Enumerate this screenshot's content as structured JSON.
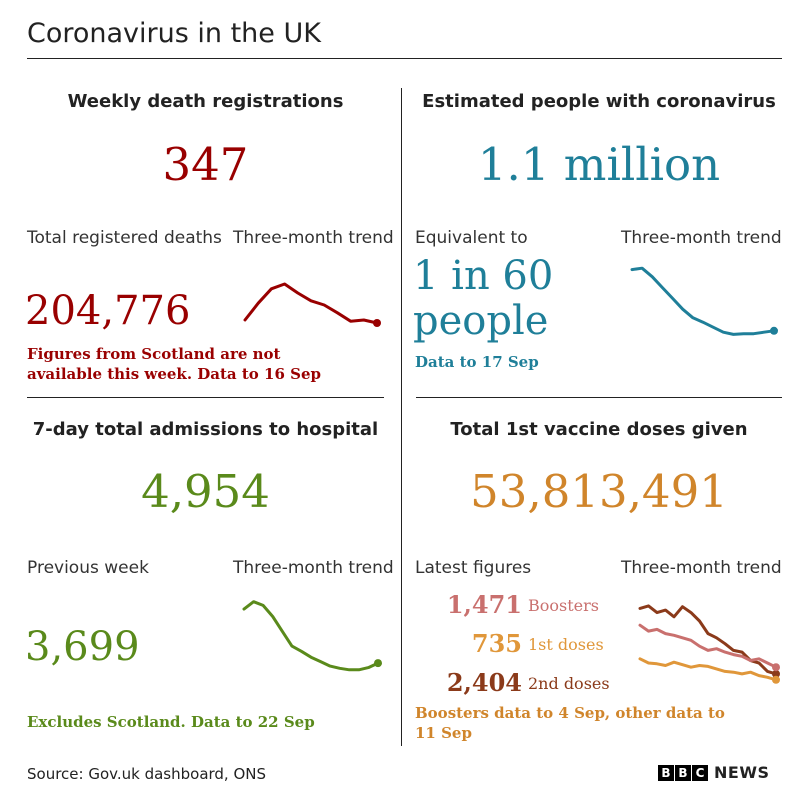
{
  "title": "Coronavirus in the UK",
  "colors": {
    "deaths": "#990000",
    "infections": "#1f7f99",
    "hospital": "#5a8a1b",
    "vaccine": "#d0852b",
    "boosters": "#c9706e",
    "first_doses": "#e0973a",
    "second_doses": "#8b3a1a"
  },
  "deaths": {
    "title": "Weekly death registrations",
    "value": "347",
    "total_label": "Total registered deaths",
    "total_value": "204,776",
    "note": "Figures from Scotland are not available this week. Data to 16 Sep",
    "trend_label": "Three-month trend"
  },
  "infections": {
    "title": "Estimated people with coronavirus",
    "value": "1.1 million",
    "equiv_label": "Equivalent to",
    "equiv_value_line1": "1 in 60",
    "equiv_value_line2": "people",
    "note": "Data to 17 Sep",
    "trend_label": "Three-month trend"
  },
  "hospital": {
    "title": "7-day total admissions to hospital",
    "value": "4,954",
    "prev_label": "Previous week",
    "prev_value": "3,699",
    "note": "Excludes Scotland. Data to 22 Sep",
    "trend_label": "Three-month trend"
  },
  "vaccine": {
    "title": "Total 1st vaccine doses given",
    "value": "53,813,491",
    "latest_label": "Latest figures",
    "boosters_value": "1,471",
    "boosters_label": "Boosters",
    "first_value": "735",
    "first_label": "1st doses",
    "second_value": "2,404",
    "second_label": "2nd doses",
    "note": "Boosters data to 4 Sep, other data to 11 Sep",
    "trend_label": "Three-month trend"
  },
  "footer": {
    "source": "Source: Gov.uk dashboard, ONS",
    "logo_letters": [
      "B",
      "B",
      "C"
    ],
    "logo_word": "NEWS"
  },
  "chart_data": [
    {
      "type": "line",
      "title": "Three-month trend",
      "series": [
        {
          "values": [
            10,
            38,
            62,
            70,
            55,
            42,
            35,
            22,
            8,
            10,
            5
          ]
        }
      ]
    },
    {
      "type": "line",
      "title": "Three-month trend",
      "series": [
        {
          "values": [
            95,
            97,
            85,
            70,
            55,
            40,
            28,
            22,
            15,
            8,
            5,
            6,
            6,
            8,
            10
          ]
        }
      ]
    },
    {
      "type": "line",
      "title": "Three-month trend",
      "series": [
        {
          "values": [
            85,
            95,
            90,
            75,
            55,
            35,
            28,
            20,
            14,
            8,
            5,
            3,
            3,
            6,
            12
          ]
        }
      ]
    },
    {
      "type": "line",
      "title": "Three-month trend",
      "series": [
        {
          "name": "2nd doses",
          "values": [
            90,
            93,
            85,
            88,
            80,
            92,
            85,
            75,
            60,
            55,
            48,
            40,
            38,
            28,
            25,
            15,
            12
          ]
        },
        {
          "name": "Boosters",
          "values": [
            70,
            63,
            65,
            60,
            58,
            55,
            52,
            45,
            40,
            42,
            38,
            35,
            33,
            28,
            30,
            25,
            20
          ]
        },
        {
          "name": "1st doses",
          "values": [
            30,
            25,
            24,
            22,
            26,
            23,
            20,
            22,
            21,
            18,
            15,
            14,
            12,
            14,
            10,
            8,
            5
          ]
        }
      ]
    }
  ]
}
